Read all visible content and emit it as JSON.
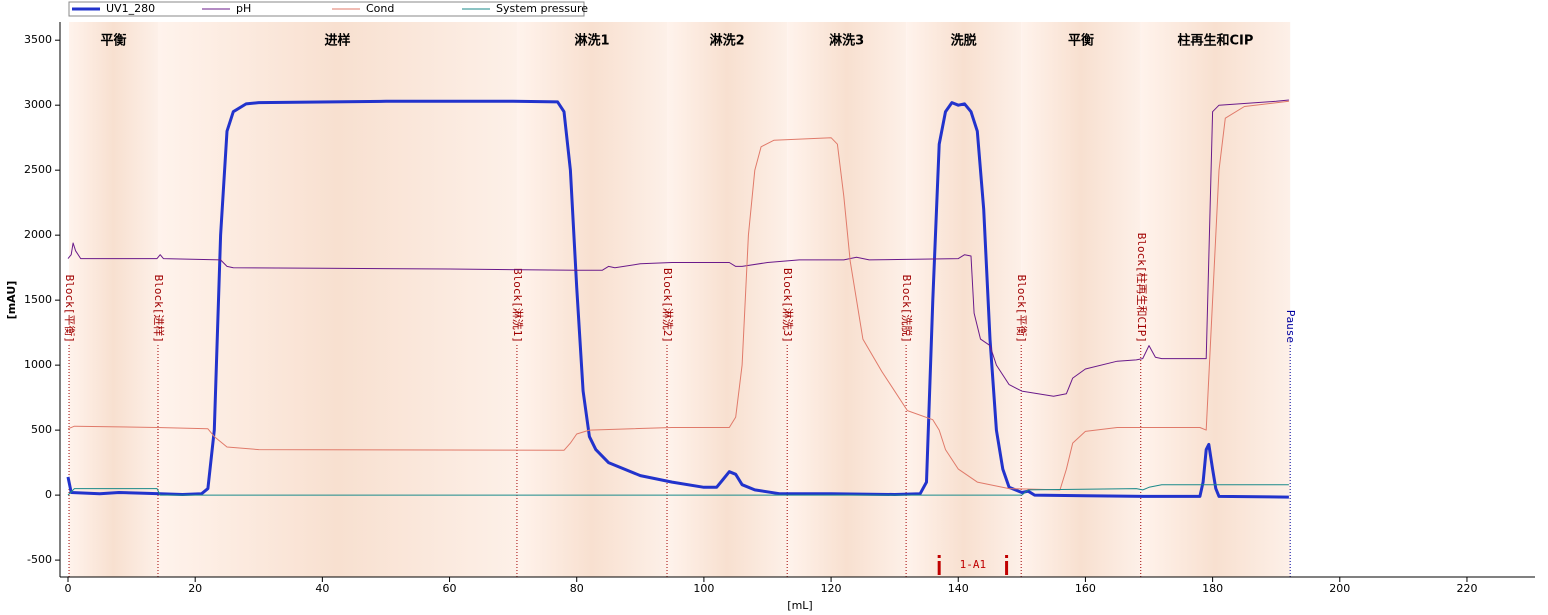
{
  "chart_data": {
    "type": "line",
    "x_label": "[mL]",
    "y_label": "[mAU]",
    "xlim": [
      -1.26,
      230.7
    ],
    "ylim": [
      -630,
      3640
    ],
    "xticks": [
      0,
      20,
      40,
      60,
      80,
      100,
      120,
      140,
      160,
      180,
      200,
      220
    ],
    "yticks": [
      -500,
      0,
      500,
      1000,
      1500,
      2000,
      2500,
      3000,
      3500
    ],
    "phases": [
      {
        "label": "平衡",
        "start": 0.16,
        "end": 14.15
      },
      {
        "label": "进样",
        "start": 14.15,
        "end": 70.6
      },
      {
        "label": "淋洗1",
        "start": 70.6,
        "end": 94.2
      },
      {
        "label": "淋洗2",
        "start": 94.2,
        "end": 113.1
      },
      {
        "label": "淋洗3",
        "start": 113.1,
        "end": 131.8
      },
      {
        "label": "洗脱",
        "start": 131.8,
        "end": 149.9
      },
      {
        "label": "平衡",
        "start": 149.9,
        "end": 168.7
      },
      {
        "label": "柱再生和CIP",
        "start": 168.7,
        "end": 192.2
      }
    ],
    "events": [
      {
        "label": "Block[平衡]",
        "x": 0.16,
        "color": "#a00000"
      },
      {
        "label": "Block[进样]",
        "x": 14.15,
        "color": "#a00000"
      },
      {
        "label": "Block[淋洗1]",
        "x": 70.6,
        "color": "#a00000"
      },
      {
        "label": "Block[淋洗2]",
        "x": 94.2,
        "color": "#a00000"
      },
      {
        "label": "Block[淋洗3]",
        "x": 113.1,
        "color": "#a00000"
      },
      {
        "label": "Block[洗脱]",
        "x": 131.8,
        "color": "#a00000"
      },
      {
        "label": "Block[平衡]",
        "x": 149.9,
        "color": "#a00000"
      },
      {
        "label": "Block[柱再生和CIP]",
        "x": 168.7,
        "color": "#a00000"
      },
      {
        "label": "Pause",
        "x": 192.2,
        "color": "#0000a0"
      }
    ],
    "fraction": {
      "label": "1-A1",
      "start": 137.0,
      "end": 147.6,
      "color": "#c00000"
    },
    "series": [
      {
        "name": "UV1_280",
        "color": "#2233cc",
        "width": 3,
        "x": [
          0,
          0.5,
          5,
          8,
          12,
          14.5,
          18,
          21,
          22,
          23,
          24,
          25,
          26,
          28,
          30,
          50,
          70,
          77,
          78,
          79,
          80,
          81,
          82,
          83,
          85,
          90,
          95,
          100,
          102,
          103,
          104,
          105,
          106,
          108,
          112,
          120,
          130,
          134,
          135,
          136,
          137,
          138,
          139,
          140,
          141,
          142,
          143,
          144,
          145,
          146,
          147,
          148,
          150,
          151,
          152,
          160,
          170,
          178,
          178.5,
          179,
          179.4,
          180,
          180.5,
          181,
          192
        ],
        "values": [
          140,
          20,
          10,
          20,
          15,
          10,
          5,
          10,
          50,
          500,
          2000,
          2800,
          2950,
          3010,
          3020,
          3030,
          3030,
          3025,
          2950,
          2500,
          1600,
          800,
          450,
          350,
          250,
          150,
          100,
          60,
          60,
          120,
          180,
          160,
          80,
          40,
          10,
          10,
          5,
          10,
          100,
          1500,
          2700,
          2950,
          3020,
          3000,
          3010,
          2950,
          2800,
          2200,
          1200,
          500,
          200,
          60,
          20,
          30,
          0,
          -5,
          -10,
          -10,
          100,
          350,
          390,
          200,
          50,
          -10,
          -15
        ]
      },
      {
        "name": "pH",
        "color": "#6a1a8a",
        "width": 1,
        "x": [
          0,
          0.5,
          0.8,
          1.2,
          2,
          14,
          14.5,
          15,
          24,
          25,
          26,
          40,
          60,
          80,
          84,
          85,
          86,
          90,
          95,
          104,
          105,
          106,
          110,
          115,
          122,
          124,
          126,
          140,
          141,
          142,
          142.5,
          143.5,
          145,
          146,
          148,
          150,
          155,
          157,
          158,
          160,
          165,
          168,
          169,
          170,
          171,
          172,
          179,
          179.5,
          180,
          181,
          190,
          192
        ],
        "values": [
          1820,
          1850,
          1940,
          1880,
          1820,
          1820,
          1850,
          1820,
          1810,
          1760,
          1750,
          1745,
          1740,
          1730,
          1730,
          1760,
          1750,
          1780,
          1790,
          1790,
          1760,
          1760,
          1790,
          1810,
          1810,
          1830,
          1810,
          1820,
          1850,
          1840,
          1400,
          1200,
          1150,
          1000,
          850,
          800,
          760,
          780,
          900,
          970,
          1030,
          1040,
          1050,
          1150,
          1060,
          1050,
          1050,
          2000,
          2950,
          3000,
          3030,
          3040
        ]
      },
      {
        "name": "Cond",
        "color": "#e07a6a",
        "width": 1,
        "x": [
          0,
          1,
          14,
          22,
          23,
          25,
          30,
          78,
          79,
          80,
          82,
          95,
          104,
          105,
          106,
          107,
          108,
          109,
          111,
          120,
          121,
          122,
          123,
          125,
          128,
          132,
          136,
          137,
          138,
          140,
          143,
          148,
          156,
          157,
          158,
          160,
          165,
          178,
          179,
          180,
          181,
          182,
          185,
          192
        ],
        "values": [
          510,
          530,
          520,
          510,
          450,
          370,
          350,
          345,
          400,
          470,
          500,
          520,
          520,
          600,
          1000,
          2000,
          2500,
          2680,
          2730,
          2750,
          2700,
          2300,
          1800,
          1200,
          950,
          650,
          580,
          500,
          350,
          200,
          100,
          50,
          40,
          200,
          400,
          490,
          520,
          520,
          500,
          1500,
          2500,
          2900,
          2990,
          3030
        ]
      },
      {
        "name": "System pressure",
        "color": "#1a8a8a",
        "width": 1,
        "x": [
          0,
          1,
          14,
          14.5,
          150,
          151,
          168,
          169,
          170,
          172,
          192
        ],
        "values": [
          0,
          50,
          50,
          0,
          0,
          40,
          50,
          40,
          60,
          80,
          80
        ]
      }
    ]
  }
}
